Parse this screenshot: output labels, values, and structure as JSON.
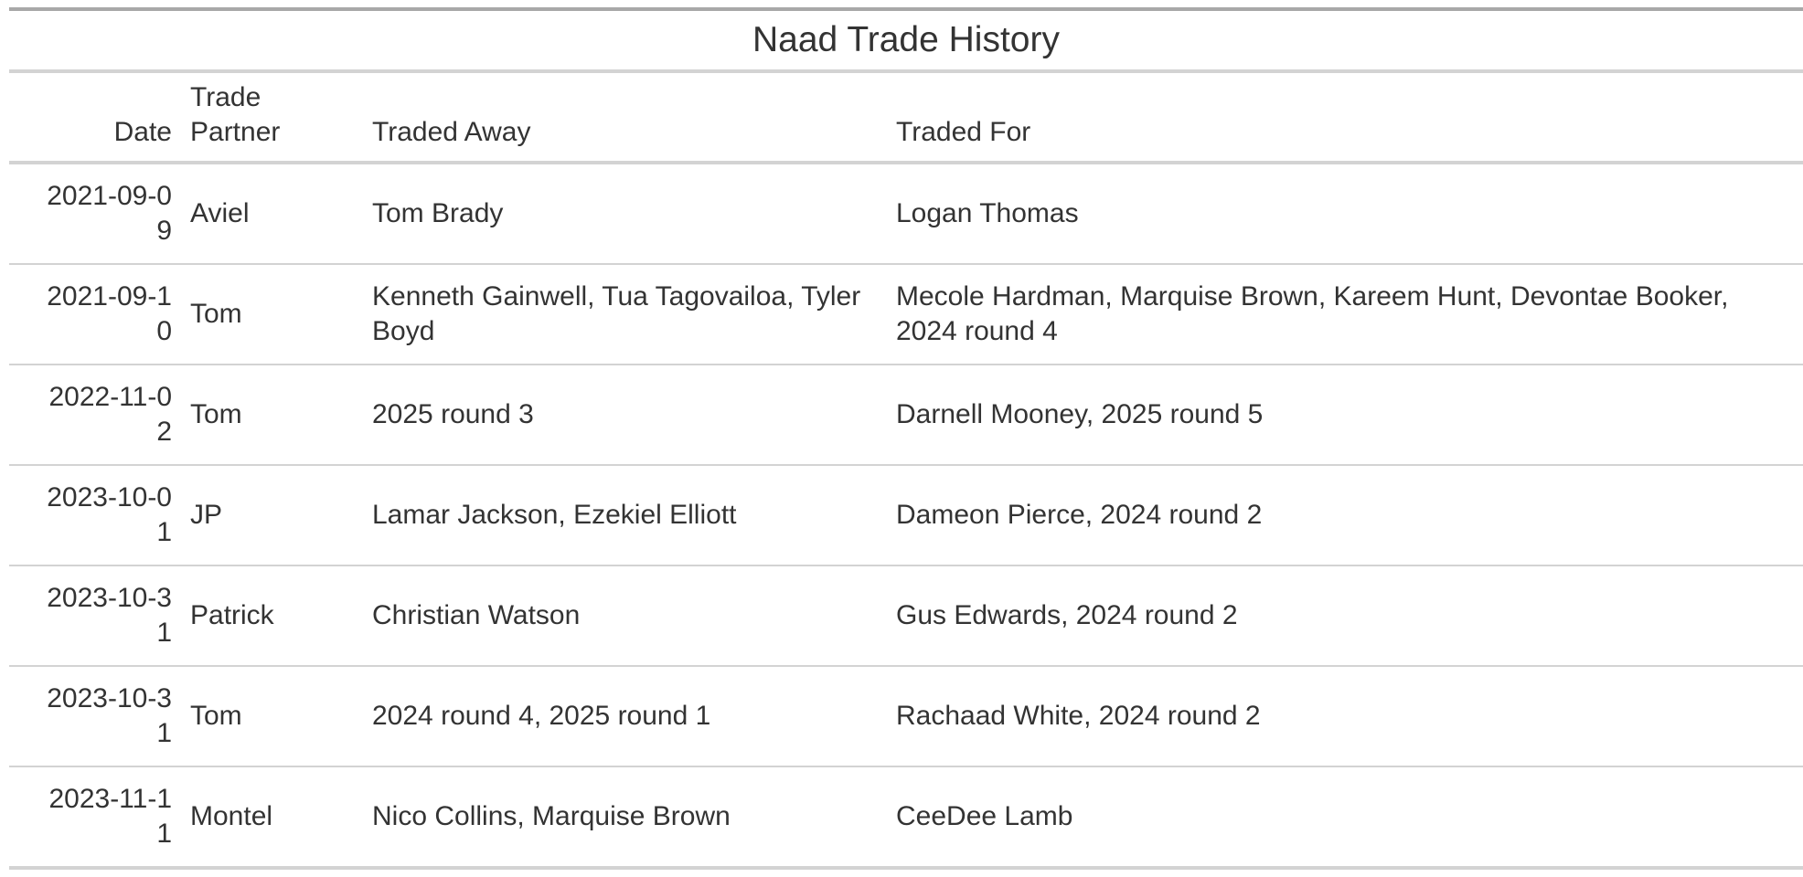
{
  "table": {
    "title": "Naad Trade History",
    "columns": {
      "date": "Date",
      "partner": "Trade Partner",
      "away": "Traded Away",
      "for": "Traded For"
    },
    "rows": [
      {
        "date": "2021-09-09",
        "partner": "Aviel",
        "away": "Tom Brady",
        "for": "Logan Thomas"
      },
      {
        "date": "2021-09-10",
        "partner": "Tom",
        "away": "Kenneth Gainwell, Tua Tagovailoa, Tyler Boyd",
        "for": "Mecole Hardman, Marquise Brown, Kareem Hunt, Devontae Booker, 2024 round 4"
      },
      {
        "date": "2022-11-02",
        "partner": "Tom",
        "away": "2025 round 3",
        "for": "Darnell Mooney, 2025 round 5"
      },
      {
        "date": "2023-10-01",
        "partner": "JP",
        "away": "Lamar Jackson, Ezekiel Elliott",
        "for": "Dameon Pierce, 2024 round 2"
      },
      {
        "date": "2023-10-31",
        "partner": "Patrick",
        "away": "Christian Watson",
        "for": "Gus Edwards, 2024 round 2"
      },
      {
        "date": "2023-10-31",
        "partner": "Tom",
        "away": "2024 round 4, 2025 round 1",
        "for": "Rachaad White, 2024 round 2"
      },
      {
        "date": "2023-11-11",
        "partner": "Montel",
        "away": "Nico Collins, Marquise Brown",
        "for": "CeeDee Lamb"
      }
    ]
  }
}
